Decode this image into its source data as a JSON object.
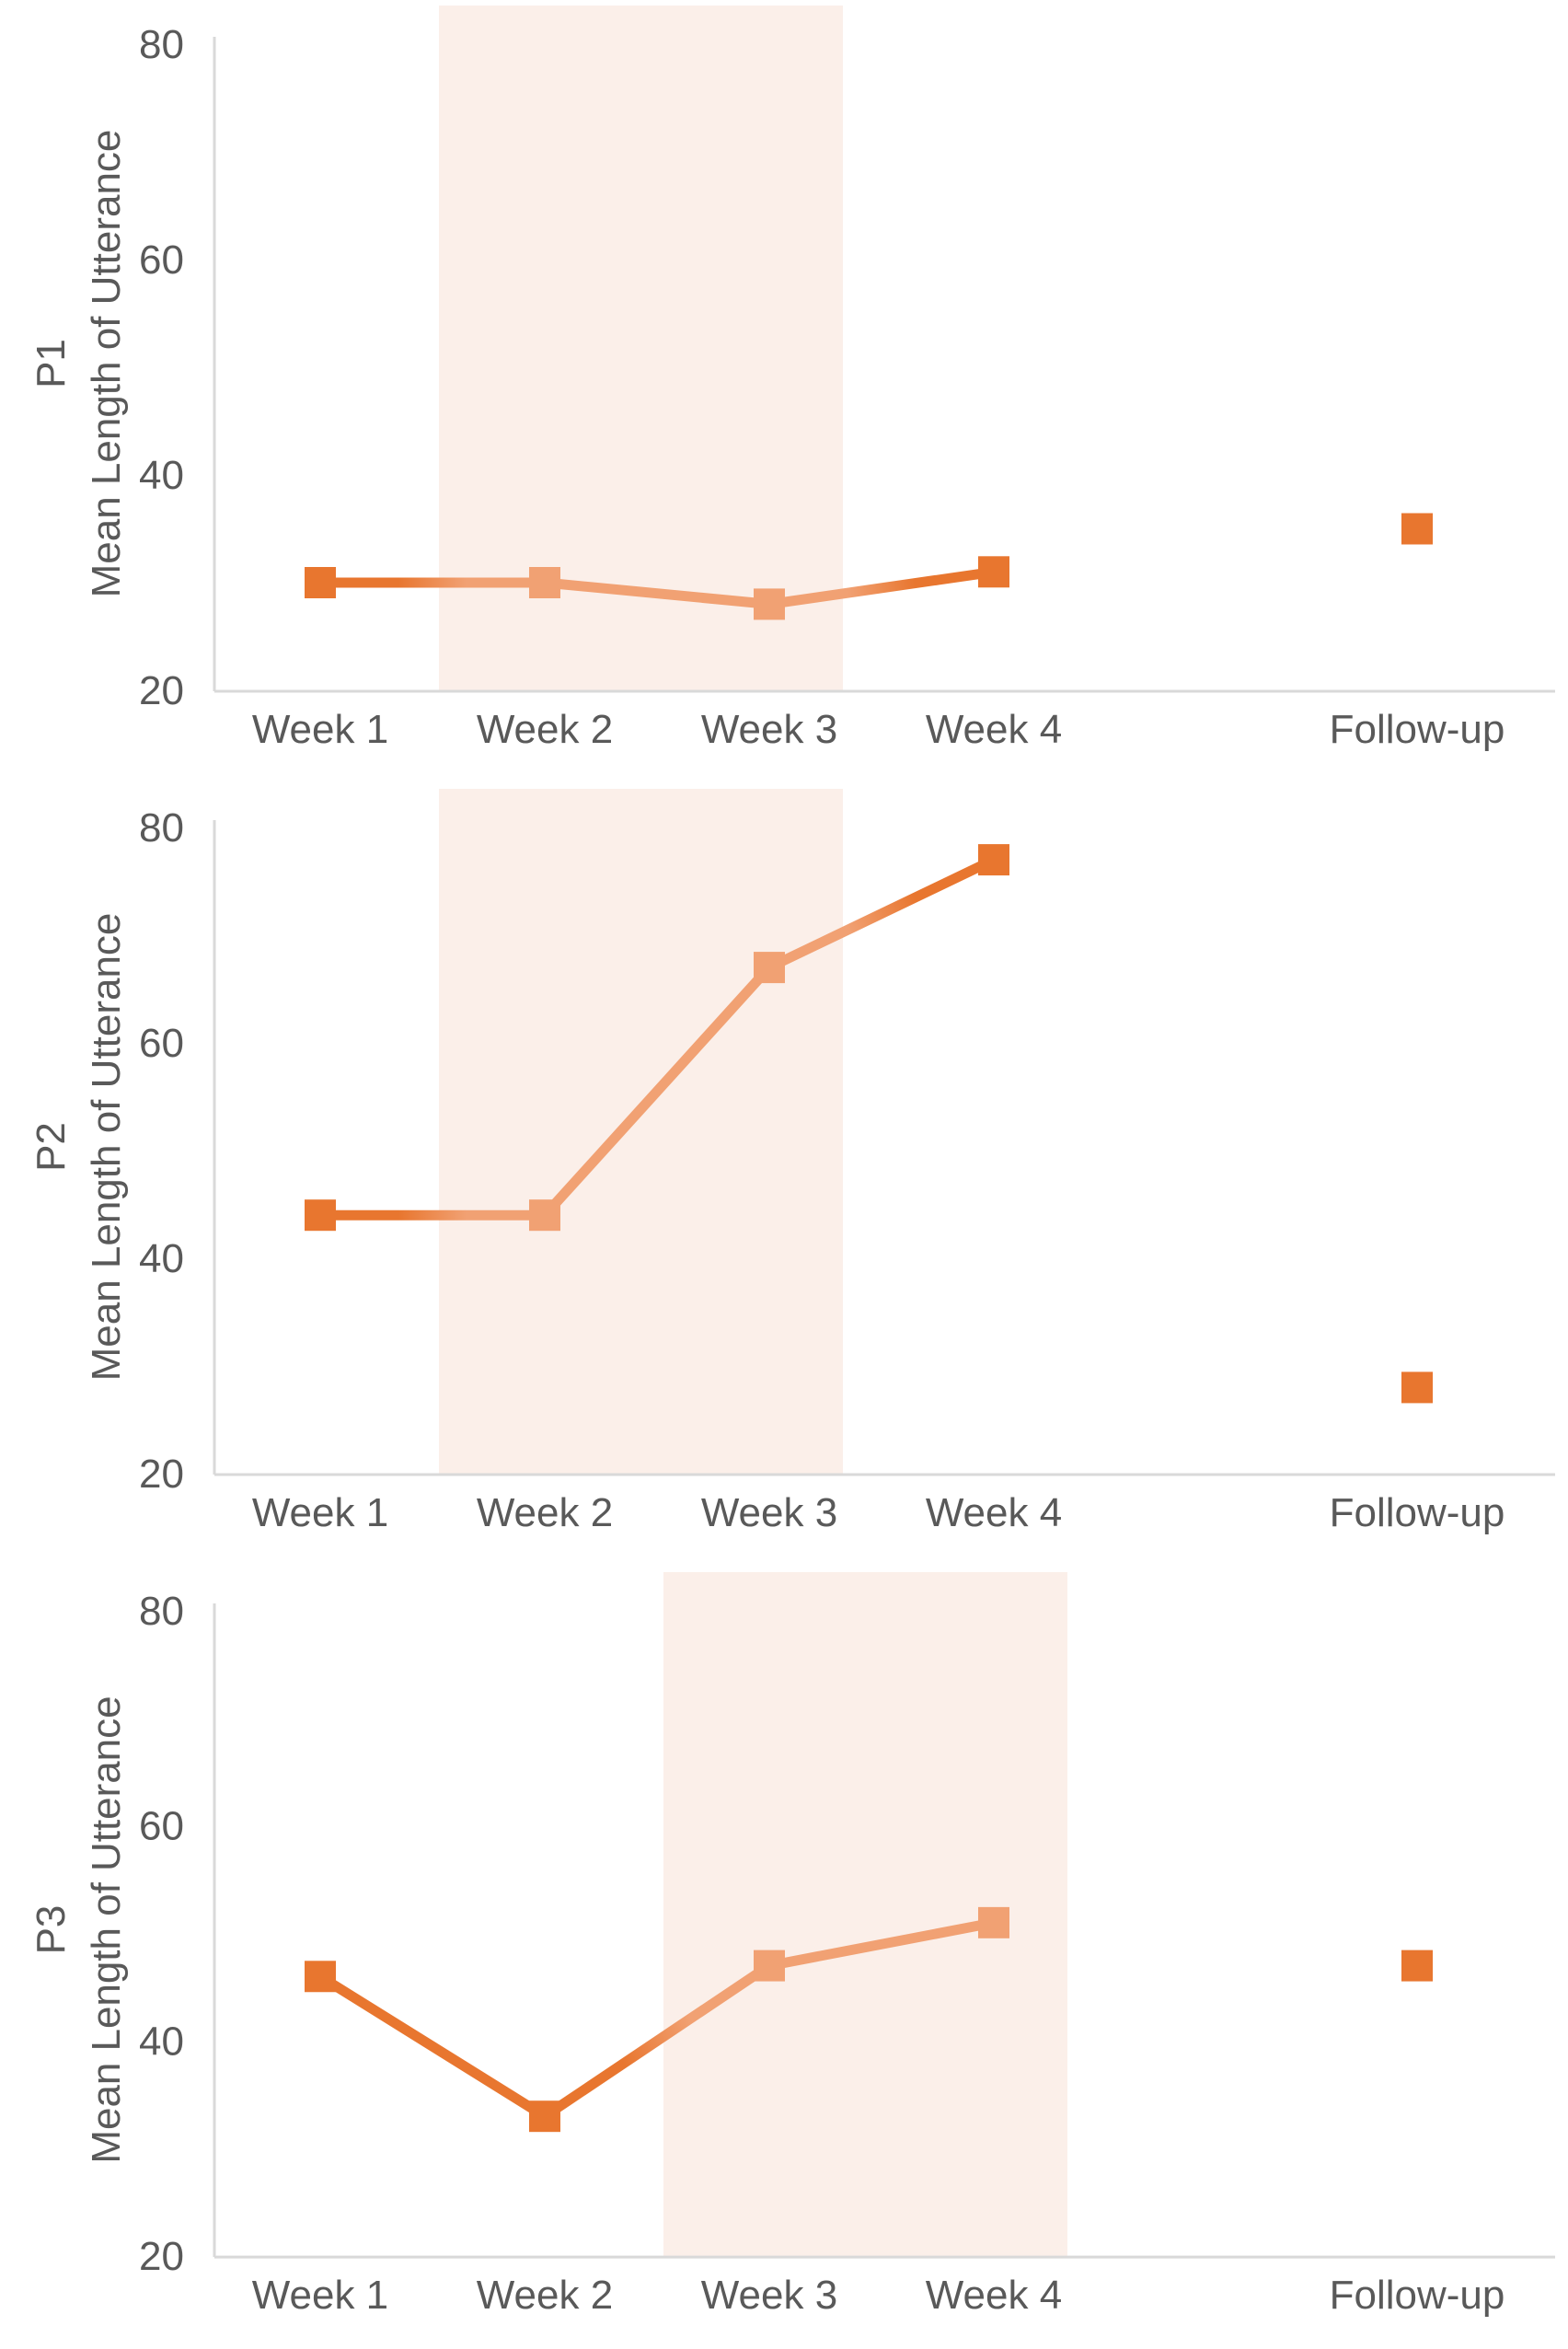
{
  "colors": {
    "baseline_marker": "#E8762F",
    "intervention_marker": "#F1A173",
    "intervention_band": "#FBEFE9",
    "axis_line": "#D9D9D9",
    "text": "#595959",
    "background": "#FFFFFF"
  },
  "chart_data": [
    {
      "type": "line",
      "panel_label": "P1",
      "ylabel": "Mean Length of Utterance",
      "xlabel": "",
      "ylim": [
        20,
        83
      ],
      "yticks": [
        20,
        40,
        60,
        80
      ],
      "grid": "off",
      "legend": "none",
      "categories": [
        "Week 1",
        "Week 2",
        "Week 3",
        "Week 4",
        "Follow-up"
      ],
      "series": [
        {
          "name": "Mean Length of Utterance",
          "points": [
            {
              "category": "Week 1",
              "value": 30,
              "phase": "baseline"
            },
            {
              "category": "Week 2",
              "value": 30,
              "phase": "intervention"
            },
            {
              "category": "Week 3",
              "value": 28,
              "phase": "intervention"
            },
            {
              "category": "Week 4",
              "value": 31,
              "phase": "baseline"
            },
            {
              "category": "Follow-up",
              "value": 35,
              "phase": "follow-up",
              "detached": true
            }
          ]
        }
      ],
      "intervention_shading": {
        "from": "Week 2",
        "to": "Week 3"
      }
    },
    {
      "type": "line",
      "panel_label": "P2",
      "ylabel": "Mean Length of Utterance",
      "xlabel": "",
      "ylim": [
        20,
        83
      ],
      "yticks": [
        20,
        40,
        60,
        80
      ],
      "grid": "off",
      "legend": "none",
      "categories": [
        "Week 1",
        "Week 2",
        "Week 3",
        "Week 4",
        "Follow-up"
      ],
      "series": [
        {
          "name": "Mean Length of Utterance",
          "points": [
            {
              "category": "Week 1",
              "value": 44,
              "phase": "baseline"
            },
            {
              "category": "Week 2",
              "value": 44,
              "phase": "intervention"
            },
            {
              "category": "Week 3",
              "value": 67,
              "phase": "intervention"
            },
            {
              "category": "Week 4",
              "value": 77,
              "phase": "baseline"
            },
            {
              "category": "Follow-up",
              "value": 28,
              "phase": "follow-up",
              "detached": true
            }
          ]
        }
      ],
      "intervention_shading": {
        "from": "Week 2",
        "to": "Week 3"
      }
    },
    {
      "type": "line",
      "panel_label": "P3",
      "ylabel": "Mean Length of Utterance",
      "xlabel": "",
      "ylim": [
        20,
        83
      ],
      "yticks": [
        20,
        40,
        60,
        80
      ],
      "grid": "off",
      "legend": "none",
      "categories": [
        "Week 1",
        "Week 2",
        "Week 3",
        "Week 4",
        "Follow-up"
      ],
      "series": [
        {
          "name": "Mean Length of Utterance",
          "points": [
            {
              "category": "Week 1",
              "value": 46,
              "phase": "baseline"
            },
            {
              "category": "Week 2",
              "value": 33,
              "phase": "baseline"
            },
            {
              "category": "Week 3",
              "value": 47,
              "phase": "intervention"
            },
            {
              "category": "Week 4",
              "value": 51,
              "phase": "intervention"
            },
            {
              "category": "Follow-up",
              "value": 47,
              "phase": "follow-up",
              "detached": true
            }
          ]
        }
      ],
      "intervention_shading": {
        "from": "Week 3",
        "to": "Week 4"
      }
    }
  ]
}
